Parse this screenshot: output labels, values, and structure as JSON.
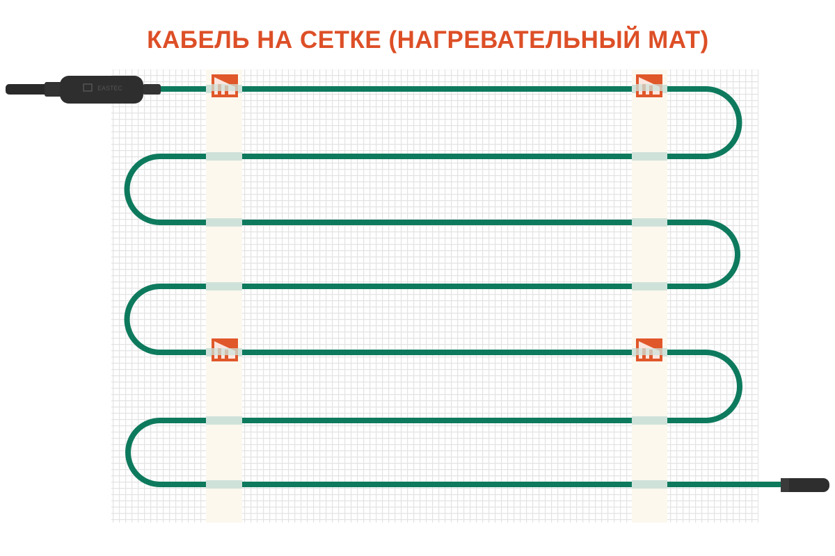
{
  "title": "КАБЕЛЬ НА СЕТКЕ (НАГРЕВАТЕЛЬНЫЙ МАТ)",
  "coupling_brand": "EASTEC",
  "colors": {
    "title": "#dd4f27",
    "cable": "#0e7a5d",
    "mesh": "#e3e3e3",
    "tape": "#fcf8ee",
    "clip": "#cfe2da",
    "label": "#e0572a",
    "connector": "#2e2e2e"
  },
  "icons": [
    "brand-label-icon",
    "coupling-icon",
    "end-cap-icon"
  ]
}
